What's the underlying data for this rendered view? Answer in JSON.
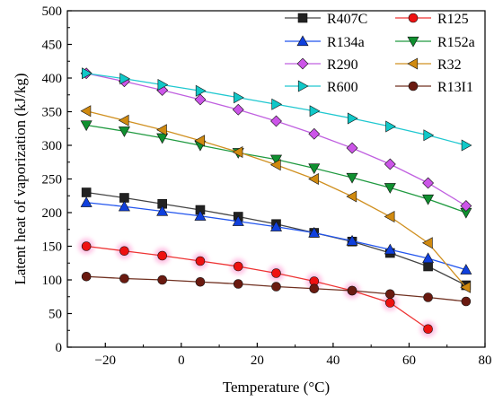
{
  "chart_data": {
    "type": "line",
    "xlabel": "Temperature (°C)",
    "ylabel": "Latent heat of vaporization (kJ/kg)",
    "xlim": [
      -30,
      80
    ],
    "ylim": [
      0,
      500
    ],
    "xticks": [
      -20,
      0,
      20,
      40,
      60,
      80
    ],
    "yticks": [
      0,
      50,
      100,
      150,
      200,
      250,
      300,
      350,
      400,
      450,
      500
    ],
    "grid": false,
    "legend_placement": "top-right",
    "x": [
      -25,
      -15,
      -5,
      5,
      15,
      25,
      35,
      45,
      55,
      65,
      75
    ],
    "series": [
      {
        "name": "R407C",
        "marker": "square",
        "color": "#222222",
        "line_color": "#444444",
        "values": [
          230,
          222,
          213,
          204,
          194,
          183,
          170,
          157,
          140,
          120,
          92
        ]
      },
      {
        "name": "R125",
        "marker": "circle",
        "color": "#ee1111",
        "line_color": "#ee3333",
        "x": [
          -25,
          -15,
          -5,
          5,
          15,
          25,
          35,
          45,
          55,
          65
        ],
        "values": [
          150,
          143,
          136,
          128,
          120,
          110,
          98,
          84,
          66,
          27
        ]
      },
      {
        "name": "R134a",
        "marker": "triangle-up",
        "color": "#1040dd",
        "line_color": "#2255ee",
        "values": [
          215,
          209,
          202,
          195,
          187,
          179,
          170,
          158,
          145,
          132,
          115
        ]
      },
      {
        "name": "R152a",
        "marker": "triangle-down",
        "color": "#109030",
        "line_color": "#209a40",
        "values": [
          330,
          321,
          311,
          300,
          289,
          279,
          266,
          252,
          237,
          220,
          200
        ]
      },
      {
        "name": "R290",
        "marker": "diamond",
        "color": "#cc55e8",
        "line_color": "#c060e0",
        "values": [
          407,
          395,
          382,
          368,
          353,
          336,
          317,
          296,
          272,
          244,
          210
        ]
      },
      {
        "name": "R32",
        "marker": "triangle-left",
        "color": "#d08a10",
        "line_color": "#d09020",
        "values": [
          351,
          337,
          323,
          307,
          290,
          271,
          250,
          224,
          194,
          155,
          89
        ]
      },
      {
        "name": "R600",
        "marker": "triangle-right",
        "color": "#10c8c8",
        "line_color": "#20c8d0",
        "values": [
          407,
          399,
          390,
          381,
          371,
          361,
          351,
          340,
          328,
          315,
          300
        ]
      },
      {
        "name": "R13I1",
        "marker": "circle",
        "color": "#6a1a10",
        "line_color": "#703020",
        "values": [
          105,
          102,
          100,
          97,
          94,
          90,
          87,
          84,
          79,
          74,
          68
        ]
      }
    ]
  }
}
